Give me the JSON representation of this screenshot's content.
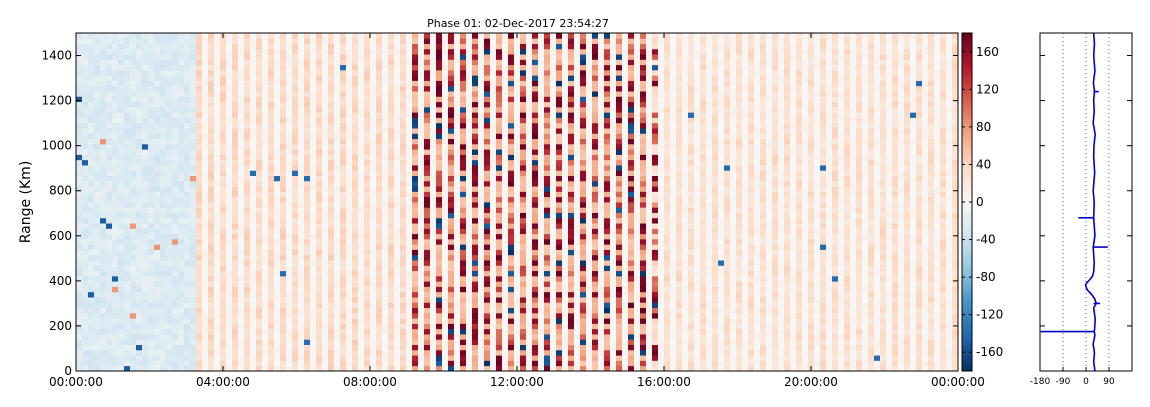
{
  "chart_data": [
    {
      "type": "heatmap",
      "title": "Phase 01: 02-Dec-2017 23:54:27",
      "xlabel": "",
      "ylabel": "Range (Km)",
      "x_ticks": [
        "00:00:00",
        "04:00:00",
        "08:00:00",
        "12:00:00",
        "16:00:00",
        "20:00:00",
        "00:00:00"
      ],
      "x_range_hours": [
        0,
        24
      ],
      "ylim": [
        0,
        1500
      ],
      "y_ticks": [
        0,
        200,
        400,
        600,
        800,
        1000,
        1200,
        1400
      ],
      "colorbar": {
        "colormap": "RdBu_r",
        "range": [
          -180,
          180
        ],
        "ticks": [
          -160,
          -120,
          -80,
          -40,
          0,
          40,
          80,
          120,
          160
        ]
      },
      "regions": [
        {
          "from_hour": 0.0,
          "to_hour": 3.3,
          "typical_phase": -25
        },
        {
          "from_hour": 3.3,
          "to_hour": 8.9,
          "typical_phase": 35
        },
        {
          "from_hour": 8.9,
          "to_hour": 15.7,
          "typical_phase": 60,
          "note_values": "mixed, frequent extremes near +/-170"
        },
        {
          "from_hour": 15.7,
          "to_hour": 24.0,
          "typical_phase": 30
        }
      ]
    },
    {
      "type": "line",
      "title": "",
      "xlabel": "",
      "ylabel": "",
      "x_ticks": [
        -180,
        -90,
        0,
        90
      ],
      "xlim": [
        -180,
        180
      ],
      "ylim": [
        0,
        1500
      ],
      "grid": true,
      "series": [
        {
          "color": "#0000cc",
          "range_km": [
            0,
            40,
            80,
            120,
            160,
            175,
            190,
            230,
            280,
            300,
            320,
            340,
            360,
            380,
            390,
            400,
            410,
            420,
            440,
            480,
            550,
            600,
            680,
            750,
            800,
            880,
            950,
            1000,
            1050,
            1100,
            1150,
            1200,
            1240,
            1280,
            1300,
            1330,
            1400,
            1450,
            1500
          ],
          "phase_deg": [
            35,
            30,
            33,
            28,
            35,
            32,
            34,
            36,
            30,
            40,
            34,
            22,
            5,
            -2,
            2,
            10,
            18,
            25,
            30,
            32,
            28,
            35,
            30,
            32,
            28,
            34,
            30,
            31,
            36,
            28,
            32,
            30,
            33,
            29,
            31,
            35,
            30,
            33,
            30
          ]
        }
      ],
      "spikes": [
        {
          "range_km": 175,
          "phase_deg": -180
        },
        {
          "range_km": 550,
          "phase_deg": 85
        },
        {
          "range_km": 680,
          "phase_deg": -30
        },
        {
          "range_km": 300,
          "phase_deg": 55
        },
        {
          "range_km": 1240,
          "phase_deg": 50
        }
      ]
    }
  ]
}
